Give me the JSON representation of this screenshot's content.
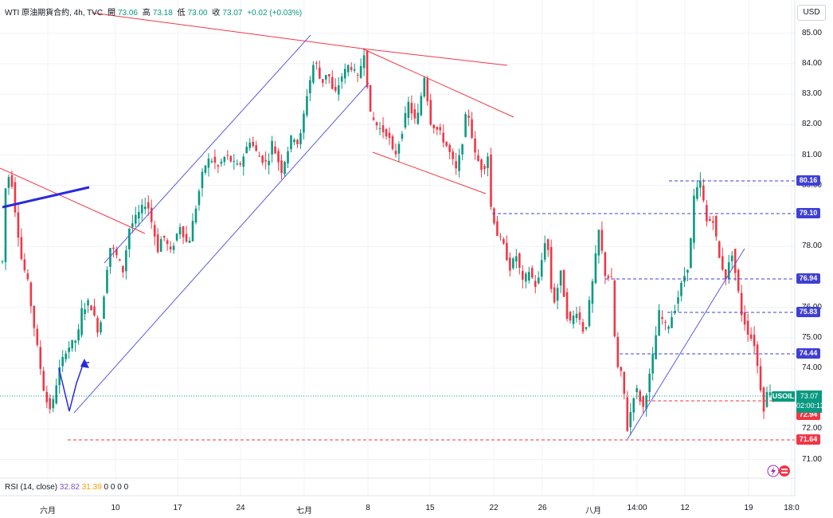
{
  "header": {
    "symbol": "WTI 原油期貨合約, 4h, TVC",
    "open_label": "開",
    "open": "73.06",
    "high_label": "高",
    "high": "73.18",
    "low_label": "低",
    "low": "73.00",
    "close_label": "收",
    "close": "73.07",
    "change": "+0.02 (+0.03%)"
  },
  "currency": "USD",
  "rsi": {
    "label": "RSI (14, close)",
    "value1": "32.82",
    "value2": "31.39",
    "extras": [
      "0",
      "0",
      "0",
      "0"
    ]
  },
  "colors": {
    "up": "#089981",
    "down": "#f23645",
    "trend_red": "#f23645",
    "trend_blue": "#2962ff"
  },
  "chart_data": {
    "type": "candlestick",
    "timeframe": "4h",
    "y_ticks": [
      "85.00",
      "84.00",
      "83.00",
      "82.00",
      "81.00",
      "80.00",
      "78.00",
      "76.00",
      "75.00",
      "74.00",
      "72.00",
      "71.00"
    ],
    "ylim": [
      70.5,
      85.5
    ],
    "x_tick_labels": [
      "六月",
      "10",
      "17",
      "24",
      "七月",
      "8",
      "15",
      "22",
      "26",
      "八月",
      "14:00",
      "12",
      "19",
      "18:0"
    ],
    "price_levels": [
      {
        "label": "80.16",
        "color": "#3f3fd6"
      },
      {
        "label": "79.10",
        "color": "#3f3fd6"
      },
      {
        "label": "76.94",
        "color": "#3f3fd6"
      },
      {
        "label": "75.83",
        "color": "#3f3fd6"
      },
      {
        "label": "74.44",
        "color": "#3f3fd6"
      },
      {
        "label": "72.94",
        "color": "#f23645"
      },
      {
        "label": "71.64",
        "color": "#f23645"
      }
    ],
    "last_price": {
      "symbol": "USOIL",
      "value": "73.07",
      "countdown": "02:00:13"
    },
    "anchors": [
      [
        0,
        77.5
      ],
      [
        4,
        79.9
      ],
      [
        10,
        80.5
      ],
      [
        16,
        79.2
      ],
      [
        24,
        77.6
      ],
      [
        32,
        76.8
      ],
      [
        42,
        75.0
      ],
      [
        54,
        73.0
      ],
      [
        62,
        72.6
      ],
      [
        70,
        73.8
      ],
      [
        80,
        74.6
      ],
      [
        95,
        75.0
      ],
      [
        100,
        75.9
      ],
      [
        110,
        76.2
      ],
      [
        122,
        75.1
      ],
      [
        135,
        78.0
      ],
      [
        142,
        77.8
      ],
      [
        152,
        77.2
      ],
      [
        160,
        78.6
      ],
      [
        175,
        79.2
      ],
      [
        182,
        79.5
      ],
      [
        196,
        77.9
      ],
      [
        202,
        78.4
      ],
      [
        212,
        77.8
      ],
      [
        224,
        78.7
      ],
      [
        234,
        78.0
      ],
      [
        244,
        79.3
      ],
      [
        254,
        80.6
      ],
      [
        262,
        80.9
      ],
      [
        272,
        80.6
      ],
      [
        282,
        81.0
      ],
      [
        292,
        80.7
      ],
      [
        298,
        80.6
      ],
      [
        312,
        81.5
      ],
      [
        322,
        81.0
      ],
      [
        334,
        80.7
      ],
      [
        340,
        81.4
      ],
      [
        352,
        80.5
      ],
      [
        366,
        81.7
      ],
      [
        374,
        81.3
      ],
      [
        384,
        83.0
      ],
      [
        394,
        84.2
      ],
      [
        402,
        83.3
      ],
      [
        410,
        83.8
      ],
      [
        418,
        82.9
      ],
      [
        428,
        83.6
      ],
      [
        438,
        84.0
      ],
      [
        448,
        83.5
      ],
      [
        456,
        84.4
      ],
      [
        464,
        82.3
      ],
      [
        474,
        81.9
      ],
      [
        486,
        81.7
      ],
      [
        494,
        80.9
      ],
      [
        502,
        81.6
      ],
      [
        512,
        82.7
      ],
      [
        522,
        82.0
      ],
      [
        532,
        83.6
      ],
      [
        540,
        82.1
      ],
      [
        552,
        81.7
      ],
      [
        562,
        81.2
      ],
      [
        572,
        80.5
      ],
      [
        578,
        81.1
      ],
      [
        586,
        82.6
      ],
      [
        596,
        81.0
      ],
      [
        606,
        80.5
      ],
      [
        612,
        81.0
      ],
      [
        616,
        79.3
      ],
      [
        624,
        78.4
      ],
      [
        632,
        78.0
      ],
      [
        640,
        77.3
      ],
      [
        648,
        77.7
      ],
      [
        656,
        76.8
      ],
      [
        664,
        77.2
      ],
      [
        674,
        76.6
      ],
      [
        686,
        78.5
      ],
      [
        694,
        76.0
      ],
      [
        704,
        77.1
      ],
      [
        714,
        75.4
      ],
      [
        724,
        75.9
      ],
      [
        734,
        75.1
      ],
      [
        744,
        76.8
      ],
      [
        752,
        78.5
      ],
      [
        760,
        77.1
      ],
      [
        768,
        76.9
      ],
      [
        774,
        74.1
      ],
      [
        782,
        73.7
      ],
      [
        788,
        72.0
      ],
      [
        798,
        73.4
      ],
      [
        808,
        72.7
      ],
      [
        818,
        74.0
      ],
      [
        828,
        75.8
      ],
      [
        838,
        75.3
      ],
      [
        848,
        76.0
      ],
      [
        858,
        76.9
      ],
      [
        866,
        77.5
      ],
      [
        872,
        79.6
      ],
      [
        880,
        80.1
      ],
      [
        888,
        78.8
      ],
      [
        896,
        78.9
      ],
      [
        904,
        77.6
      ],
      [
        912,
        77.0
      ],
      [
        920,
        77.8
      ],
      [
        926,
        76.8
      ],
      [
        932,
        75.8
      ],
      [
        940,
        75.2
      ],
      [
        948,
        74.8
      ],
      [
        954,
        73.7
      ],
      [
        960,
        72.7
      ],
      [
        966,
        73.4
      ],
      [
        972,
        73.07
      ]
    ]
  }
}
